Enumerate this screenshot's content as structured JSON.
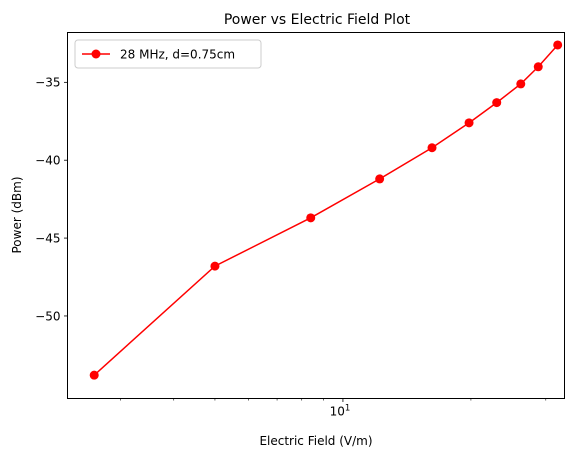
{
  "chart_data": {
    "type": "line",
    "title": "Power vs Electric Field Plot",
    "xlabel": "Electric Field (V/m)",
    "ylabel": "Power (dBm)",
    "x_scale": "log",
    "xlim": [
      2.25,
      33.2
    ],
    "ylim": [
      -55.3,
      -31.8
    ],
    "x_ticks": [
      {
        "value": 10,
        "base": "10",
        "exp": "1"
      }
    ],
    "y_ticks": [
      {
        "value": -50,
        "label": "−50"
      },
      {
        "value": -45,
        "label": "−45"
      },
      {
        "value": -40,
        "label": "−40"
      },
      {
        "value": -35,
        "label": "−35"
      }
    ],
    "grid": false,
    "legend_position": "upper-left",
    "series": [
      {
        "name": "28 MHz, d=0.75cm",
        "color": "#ff0000",
        "marker": "circle",
        "x": [
          2.6,
          5.0,
          8.4,
          12.2,
          16.2,
          19.8,
          23.0,
          26.2,
          28.8,
          32.0
        ],
        "y": [
          -53.8,
          -46.8,
          -43.7,
          -41.2,
          -39.2,
          -37.6,
          -36.3,
          -35.1,
          -34.0,
          -32.6
        ]
      }
    ]
  }
}
